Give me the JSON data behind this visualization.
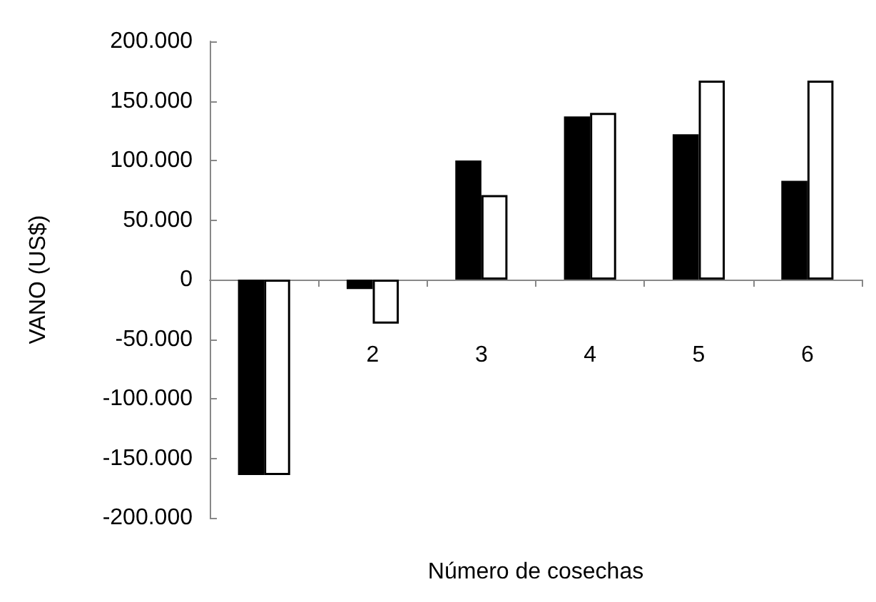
{
  "chart_data": {
    "type": "bar",
    "xlabel": "Número de cosechas",
    "ylabel": "VANO (US$)",
    "categories": [
      null,
      "2",
      "3",
      "4",
      "5",
      "6"
    ],
    "series": [
      {
        "color": "#000000",
        "values": [
          -164000,
          -8000,
          100000,
          137000,
          122000,
          83000
        ]
      },
      {
        "color": "#ffffff",
        "values": [
          -164000,
          -37000,
          71000,
          140000,
          167000,
          167000
        ]
      }
    ],
    "ylim": [
      -200000,
      200000
    ],
    "yticks": [
      {
        "value": -200000,
        "label": "-200.000"
      },
      {
        "value": -150000,
        "label": "-150.000"
      },
      {
        "value": -100000,
        "label": "-100.000"
      },
      {
        "value": -50000,
        "label": "-50.000"
      },
      {
        "value": 0,
        "label": "0"
      },
      {
        "value": 50000,
        "label": "50.000"
      },
      {
        "value": 100000,
        "label": "100.000"
      },
      {
        "value": 150000,
        "label": "150.000"
      },
      {
        "value": 200000,
        "label": "200.000"
      }
    ],
    "tick_labels": "y"
  }
}
